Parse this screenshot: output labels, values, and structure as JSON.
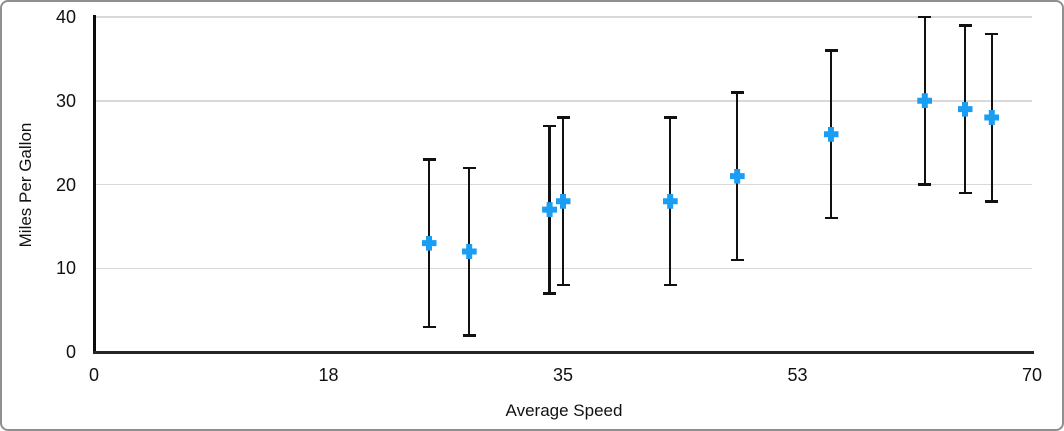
{
  "chart_data": {
    "type": "scatter",
    "xlabel": "Average Speed",
    "ylabel": "Miles Per Gallon",
    "xlim": [
      0,
      70
    ],
    "ylim": [
      0,
      40
    ],
    "x_ticks": [
      {
        "value": 0,
        "label": "0"
      },
      {
        "value": 17.5,
        "label": "18"
      },
      {
        "value": 35,
        "label": "35"
      },
      {
        "value": 52.5,
        "label": "53"
      },
      {
        "value": 70,
        "label": "70"
      }
    ],
    "y_ticks": [
      {
        "value": 0,
        "label": "0"
      },
      {
        "value": 10,
        "label": "10"
      },
      {
        "value": 20,
        "label": "20"
      },
      {
        "value": 30,
        "label": "30"
      },
      {
        "value": 40,
        "label": "40"
      }
    ],
    "grid": "horizontal",
    "legend_position": "none",
    "marker": "plus",
    "marker_color": "#1b9df3",
    "error_bar_color": "#111111",
    "points": [
      {
        "x": 25,
        "y": 13,
        "error_minus": 10,
        "error_plus": 10
      },
      {
        "x": 28,
        "y": 12,
        "error_minus": 10,
        "error_plus": 10
      },
      {
        "x": 34,
        "y": 17,
        "error_minus": 10,
        "error_plus": 10
      },
      {
        "x": 35,
        "y": 18,
        "error_minus": 10,
        "error_plus": 10
      },
      {
        "x": 43,
        "y": 18,
        "error_minus": 10,
        "error_plus": 10
      },
      {
        "x": 48,
        "y": 21,
        "error_minus": 10,
        "error_plus": 10
      },
      {
        "x": 55,
        "y": 26,
        "error_minus": 10,
        "error_plus": 10
      },
      {
        "x": 62,
        "y": 30,
        "error_minus": 10,
        "error_plus": 10
      },
      {
        "x": 65,
        "y": 29,
        "error_minus": 10,
        "error_plus": 10
      },
      {
        "x": 67,
        "y": 28,
        "error_minus": 10,
        "error_plus": 10
      }
    ]
  }
}
